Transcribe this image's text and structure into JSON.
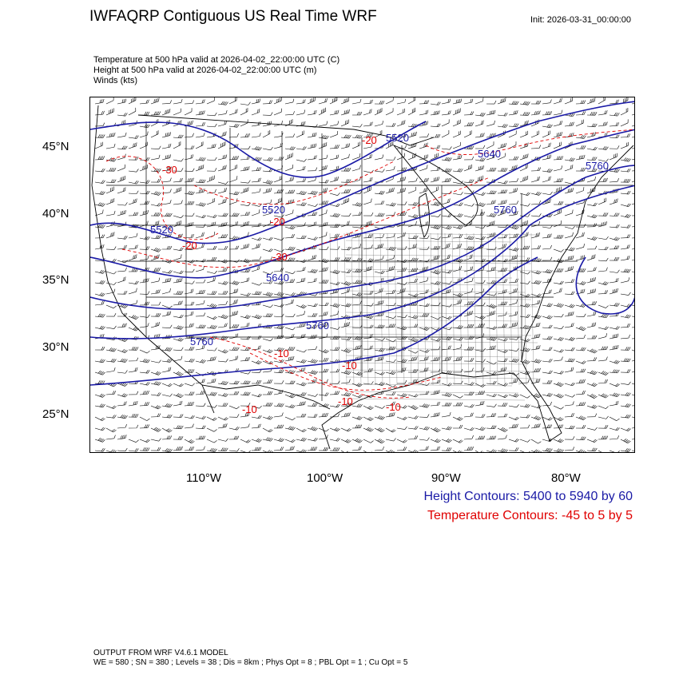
{
  "title": "IWFAQRP Contiguous US Real Time WRF",
  "init": "Init: 2026-03-31_00:00:00",
  "subtitles": [
    "Temperature at 500 hPa valid at 2026-04-02_22:00:00 UTC   (C)",
    "Height at 500 hPa valid at 2026-04-02_22:00:00 UTC   (m)",
    "Winds   (kts)"
  ],
  "lat_labels": [
    "45°N",
    "40°N",
    "35°N",
    "30°N",
    "25°N"
  ],
  "lon_labels": [
    "110°W",
    "100°W",
    "90°W",
    "80°W"
  ],
  "height_labels": [
    "5520",
    "5520",
    "5520",
    "5640",
    "5640",
    "5760",
    "5760",
    "5760",
    "5760"
  ],
  "temp_labels": [
    "-20",
    "-30",
    "-20",
    "-20",
    "-30",
    "-10",
    "-10",
    "-10",
    "-10",
    "-10"
  ],
  "legend": {
    "height": "Height Contours: 5400 to 5940 by 60",
    "temperature": "Temperature Contours: -45 to 5 by 5"
  },
  "footer": [
    "OUTPUT FROM WRF V4.6.1 MODEL",
    "WE = 580 ; SN = 380 ; Levels = 38 ; Dis = 8km ; Phys Opt = 8 ; PBL Opt = 1 ; Cu Opt = 5"
  ],
  "colors": {
    "height": "#1a1aa6",
    "temperature": "#e00000",
    "barbs": "#000000"
  }
}
